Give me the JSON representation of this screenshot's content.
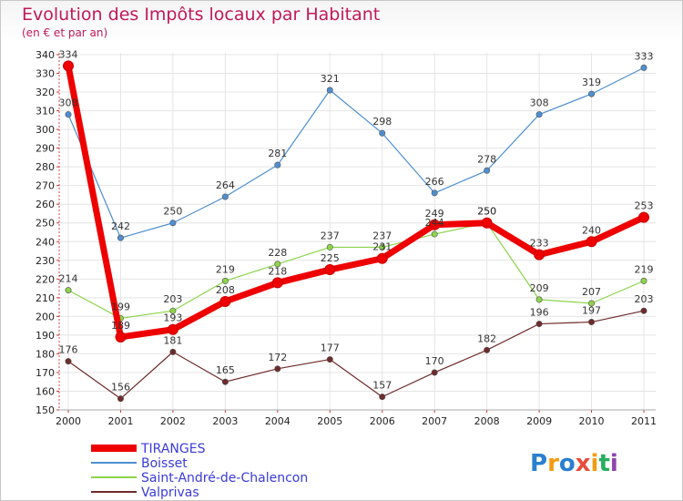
{
  "chart_data": {
    "type": "line",
    "title": "Evolution des Impôts locaux par Habitant",
    "subtitle": "(en € et par an)",
    "xlabel": "",
    "ylabel": "",
    "x": [
      "2000",
      "2001",
      "2002",
      "2003",
      "2004",
      "2005",
      "2006",
      "2007",
      "2008",
      "2009",
      "2010",
      "2011"
    ],
    "ylim": [
      150,
      340
    ],
    "yticks": [
      150,
      160,
      170,
      180,
      190,
      200,
      210,
      220,
      230,
      240,
      250,
      260,
      270,
      280,
      290,
      300,
      310,
      320,
      330,
      340
    ],
    "grid": true,
    "legend": "bottom-left",
    "series": [
      {
        "name": "TIRANGES",
        "color": "#ee0000",
        "values": [
          334,
          189,
          193,
          208,
          218,
          225,
          231,
          249,
          250,
          233,
          240,
          253
        ]
      },
      {
        "name": "Boisset",
        "color": "#4d8fd1",
        "values": [
          308,
          242,
          250,
          264,
          281,
          321,
          298,
          266,
          278,
          308,
          319,
          333
        ]
      },
      {
        "name": "Saint-André-de-Chalencon",
        "color": "#8cd44a",
        "values": [
          214,
          199,
          203,
          219,
          228,
          237,
          237,
          244,
          250,
          209,
          207,
          219
        ]
      },
      {
        "name": "Valprivas",
        "color": "#6e2b2b",
        "values": [
          176,
          156,
          181,
          165,
          172,
          177,
          157,
          170,
          182,
          196,
          197,
          203
        ]
      }
    ]
  },
  "logo": {
    "text": "Proxiti"
  }
}
